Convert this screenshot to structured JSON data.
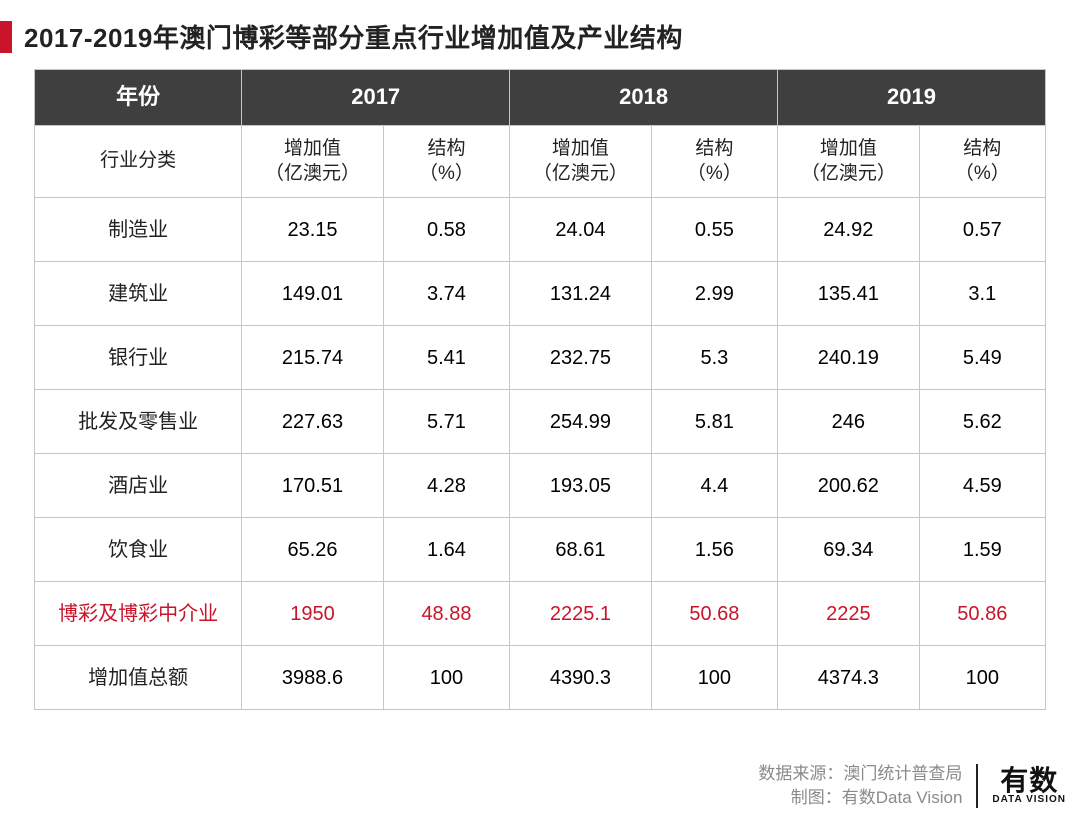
{
  "title": "2017-2019年澳门博彩等部分重点行业增加值及产业结构",
  "header": {
    "year_label": "年份",
    "category_label": "行业分类",
    "years": [
      "2017",
      "2018",
      "2019"
    ],
    "sub_value": "增加值\n（亿澳元）",
    "sub_pct": "结构\n（%）"
  },
  "rows": [
    {
      "cat": "制造业",
      "v": [
        "23.15",
        "0.58",
        "24.04",
        "0.55",
        "24.92",
        "0.57"
      ],
      "hl": false
    },
    {
      "cat": "建筑业",
      "v": [
        "149.01",
        "3.74",
        "131.24",
        "2.99",
        "135.41",
        "3.1"
      ],
      "hl": false
    },
    {
      "cat": "银行业",
      "v": [
        "215.74",
        "5.41",
        "232.75",
        "5.3",
        "240.19",
        "5.49"
      ],
      "hl": false
    },
    {
      "cat": "批发及零售业",
      "v": [
        "227.63",
        "5.71",
        "254.99",
        "5.81",
        "246",
        "5.62"
      ],
      "hl": false
    },
    {
      "cat": "酒店业",
      "v": [
        "170.51",
        "4.28",
        "193.05",
        "4.4",
        "200.62",
        "4.59"
      ],
      "hl": false
    },
    {
      "cat": "饮食业",
      "v": [
        "65.26",
        "1.64",
        "68.61",
        "1.56",
        "69.34",
        "1.59"
      ],
      "hl": false
    },
    {
      "cat": "博彩及博彩中介业",
      "v": [
        "1950",
        "48.88",
        "2225.1",
        "50.68",
        "2225",
        "50.86"
      ],
      "hl": true
    },
    {
      "cat": "增加值总额",
      "v": [
        "3988.6",
        "100",
        "4390.3",
        "100",
        "4374.3",
        "100"
      ],
      "hl": false
    }
  ],
  "footer": {
    "source": "数据来源：澳门统计普查局",
    "credit": "制图：有数Data Vision",
    "logo_main": "有数",
    "logo_sub": "DATA VISION"
  },
  "colors": {
    "accent": "#c91429",
    "header_bg": "#3f3f3f",
    "border": "#c6c6c6",
    "text": "#222222",
    "muted": "#8a8a8a"
  }
}
